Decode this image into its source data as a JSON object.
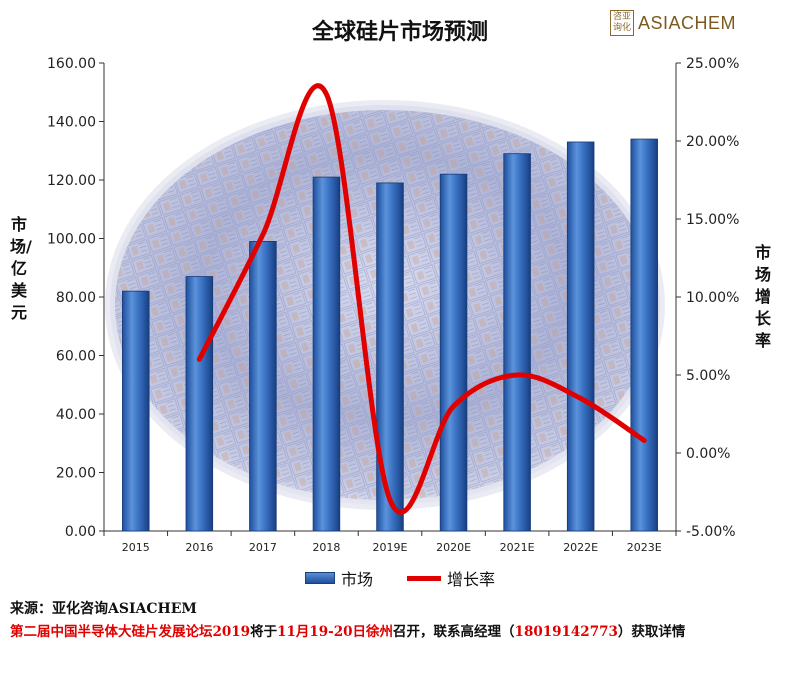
{
  "logo": {
    "seal_text": "咨亚\n询化",
    "name": "ASIACHEM"
  },
  "footer": {
    "source": "来源：亚化咨询ASIACHEM",
    "notice_parts": [
      {
        "text": "第二届中国半导体大硅片发展论坛2019",
        "color": "red"
      },
      {
        "text": "将于",
        "color": "dark"
      },
      {
        "text": "11月19-20日徐州",
        "color": "red"
      },
      {
        "text": "召开，联系高经理（",
        "color": "dark"
      },
      {
        "text": "18019142773",
        "color": "red"
      },
      {
        "text": "）获取详情",
        "color": "dark"
      }
    ]
  },
  "colors": {
    "bar": "#2e64b5",
    "line": "#e00000"
  },
  "chart_data": {
    "type": "bar",
    "title": "全球硅片市场预测",
    "categories": [
      "2015",
      "2016",
      "2017",
      "2018",
      "2019E",
      "2020E",
      "2021E",
      "2022E",
      "2023E"
    ],
    "series": [
      {
        "name": "市场",
        "type": "bar",
        "axis": "left",
        "values": [
          82,
          87,
          99,
          121,
          119,
          122,
          129,
          133,
          134
        ]
      },
      {
        "name": "增长率",
        "type": "line",
        "axis": "right",
        "values": [
          null,
          6.0,
          14.0,
          23.0,
          -3.0,
          3.0,
          5.0,
          3.5,
          0.8
        ]
      }
    ],
    "ylabel": "市场/亿美元",
    "y2label": "市场增长率",
    "ylim": [
      0,
      160
    ],
    "y2lim": [
      -5,
      25
    ],
    "yticks": [
      "0.00",
      "20.00",
      "40.00",
      "60.00",
      "80.00",
      "100.00",
      "120.00",
      "140.00",
      "160.00"
    ],
    "y2ticks": [
      "-5.00%",
      "0.00%",
      "5.00%",
      "10.00%",
      "15.00%",
      "20.00%",
      "25.00%"
    ],
    "legend_position": "bottom"
  }
}
